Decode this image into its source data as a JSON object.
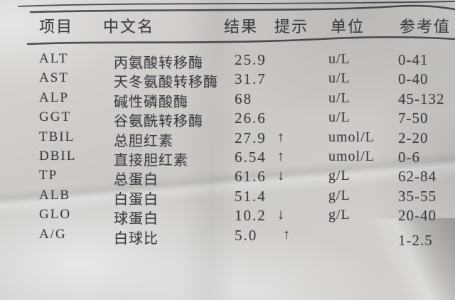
{
  "report": {
    "header": {
      "item": "项目",
      "name": "中文名",
      "result": "结果",
      "flag": "提示",
      "unit": "单位",
      "reference": "参考值"
    },
    "rows": [
      {
        "code": "ALT",
        "name": "丙氨酸转移酶",
        "result": "25.9",
        "flag": "",
        "unit": "u/L",
        "reference": "0-41"
      },
      {
        "code": "AST",
        "name": "天冬氨酸转移酶",
        "result": "31.7",
        "flag": "",
        "unit": "u/L",
        "reference": "0-40"
      },
      {
        "code": "ALP",
        "name": "碱性磷酸酶",
        "result": "68",
        "flag": "",
        "unit": "u/L",
        "reference": "45-132"
      },
      {
        "code": "GGT",
        "name": "谷氨酰转移酶",
        "result": "26.6",
        "flag": "",
        "unit": "u/L",
        "reference": "7-50"
      },
      {
        "code": "TBIL",
        "name": "总胆红素",
        "result": "27.9",
        "flag": "↑",
        "unit": "umol/L",
        "reference": "2-20"
      },
      {
        "code": "DBIL",
        "name": "直接胆红素",
        "result": "6.54",
        "flag": "↑",
        "unit": "umol/L",
        "reference": "0-6"
      },
      {
        "code": "TP",
        "name": "总蛋白",
        "result": "61.6",
        "flag": "↓",
        "unit": "g/L",
        "reference": "62-84"
      },
      {
        "code": "ALB",
        "name": "白蛋白",
        "result": "51.4",
        "flag": "",
        "unit": "g/L",
        "reference": "35-55"
      },
      {
        "code": "GLO",
        "name": "球蛋白",
        "result": "10.2",
        "flag": "↓",
        "unit": "g/L",
        "reference": "20-40"
      },
      {
        "code": "A/G",
        "name": "白球比",
        "result": "5.0",
        "flag": "↑",
        "unit": "",
        "reference": "1-2.5"
      }
    ],
    "colors": {
      "paper": "#cfccc8",
      "ink": "#3e3d42",
      "rule": "#34343a"
    }
  }
}
